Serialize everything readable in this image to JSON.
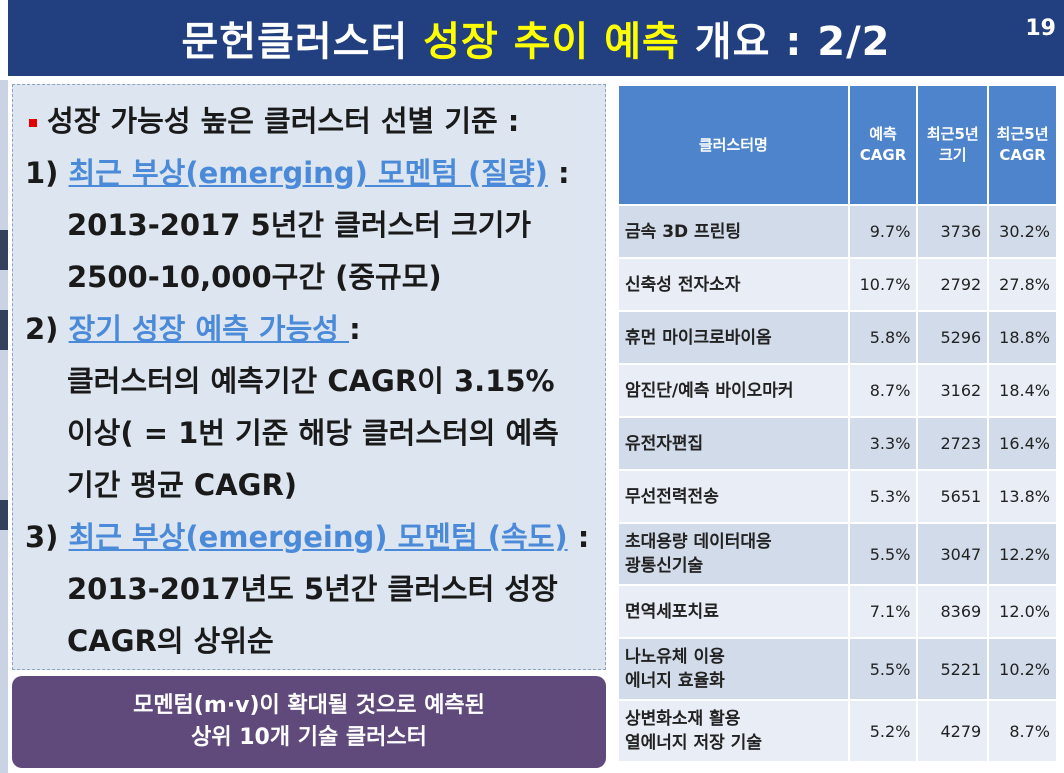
{
  "slide": {
    "title_pre": "문헌클러스터",
    "title_highlight": "성장 추이 예측",
    "title_post": "개요 : 2/2",
    "page_number": "19"
  },
  "criteria": {
    "heading": "성장 가능성 높은 클러스터 선별 기준 :",
    "item1": {
      "num": "1)",
      "link": "최근 부상(emerging) 모멘텀 (질량)",
      "suffix": " :",
      "lines": [
        "2013-2017 5년간 클러스터 크기가",
        "2500-10,000구간 (중규모)"
      ]
    },
    "item2": {
      "num": "2)",
      "link": "장기 성장 예측 가능성 ",
      "suffix": ":",
      "lines": [
        "클러스터의 예측기간 CAGR이 3.15%",
        "이상( = 1번 기준 해당 클러스터의 예측",
        "기간 평균 CAGR)"
      ]
    },
    "item3": {
      "num": "3)",
      "link": "최근 부상(emergeing) 모멘텀 (속도)",
      "suffix": " :",
      "lines": [
        "2013-2017년도 5년간 클러스터 성장",
        "CAGR의 상위순"
      ]
    }
  },
  "banner": {
    "line1": "모멘텀(m·v)이 확대될 것으로 예측된",
    "line2": "상위 10개 기술 클러스터"
  },
  "table": {
    "headers": {
      "name": "클러스터명",
      "pred_1": "예측",
      "pred_2": "CAGR",
      "size_1": "최근5년",
      "size_2": "크기",
      "cagr_1": "최근5년",
      "cagr_2": "CAGR"
    },
    "rows": [
      {
        "name_lines": [
          "금속 3D 프린팅"
        ],
        "pred_cagr": "9.7%",
        "size": "3736",
        "recent_cagr": "30.2%"
      },
      {
        "name_lines": [
          "신축성 전자소자"
        ],
        "pred_cagr": "10.7%",
        "size": "2792",
        "recent_cagr": "27.8%"
      },
      {
        "name_lines": [
          "휴먼 마이크로바이옴"
        ],
        "pred_cagr": "5.8%",
        "size": "5296",
        "recent_cagr": "18.8%"
      },
      {
        "name_lines": [
          "암진단/예측 바이오마커"
        ],
        "pred_cagr": "8.7%",
        "size": "3162",
        "recent_cagr": "18.4%"
      },
      {
        "name_lines": [
          "유전자편집"
        ],
        "pred_cagr": "3.3%",
        "size": "2723",
        "recent_cagr": "16.4%"
      },
      {
        "name_lines": [
          "무선전력전송"
        ],
        "pred_cagr": "5.3%",
        "size": "5651",
        "recent_cagr": "13.8%"
      },
      {
        "name_lines": [
          "초대용량 데이터대응",
          "광통신기술"
        ],
        "pred_cagr": "5.5%",
        "size": "3047",
        "recent_cagr": "12.2%"
      },
      {
        "name_lines": [
          "면역세포치료"
        ],
        "pred_cagr": "7.1%",
        "size": "8369",
        "recent_cagr": "12.0%"
      },
      {
        "name_lines": [
          "나노유체 이용",
          "에너지 효율화"
        ],
        "pred_cagr": "5.5%",
        "size": "5221",
        "recent_cagr": "10.2%"
      },
      {
        "name_lines": [
          "상변화소재 활용",
          "열에너지 저장 기술"
        ],
        "pred_cagr": "5.2%",
        "size": "4279",
        "recent_cagr": "8.7%"
      }
    ]
  }
}
